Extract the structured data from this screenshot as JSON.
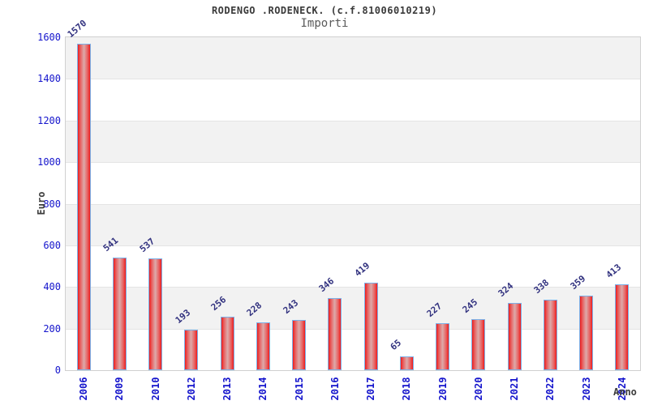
{
  "chart_data": {
    "type": "bar",
    "title": "RODENGO .RODENECK. (c.f.81006010219)",
    "subtitle": "Importi",
    "xlabel": "Anno",
    "ylabel": "Euro",
    "categories": [
      "2006",
      "2009",
      "2010",
      "2012",
      "2013",
      "2014",
      "2015",
      "2016",
      "2017",
      "2018",
      "2019",
      "2020",
      "2021",
      "2022",
      "2023",
      "2024"
    ],
    "values": [
      1570,
      541,
      537,
      193,
      256,
      228,
      243,
      346,
      419,
      65,
      227,
      245,
      324,
      338,
      359,
      413
    ],
    "ylim": [
      0,
      1600
    ],
    "yticks": [
      0,
      200,
      400,
      600,
      800,
      1000,
      1200,
      1400,
      1600
    ],
    "grid": "alternating horizontal bands of 200 units, gray then white from top",
    "legend": "none",
    "value_label_rotation_deg": -40,
    "xtick_rotation_deg": -90,
    "colors": {
      "bar_red_edge": "#ee1c1c",
      "bar_red_soft": "#e75f5f",
      "bar_red_mid": "#ddaaaa",
      "bar_border_blue": "#7cb1e8",
      "axis_tick_blue": "#1414cc",
      "value_label_navy": "#333380",
      "band_gray": "#f2f2f2",
      "band_white": "#ffffff",
      "gridline": "#e4e4e4",
      "plot_border": "#d0d0d0",
      "title_color": "#3a3a3a",
      "subtitle_color": "#5a5a5a",
      "axis_title_color": "#3c3c3c"
    }
  }
}
